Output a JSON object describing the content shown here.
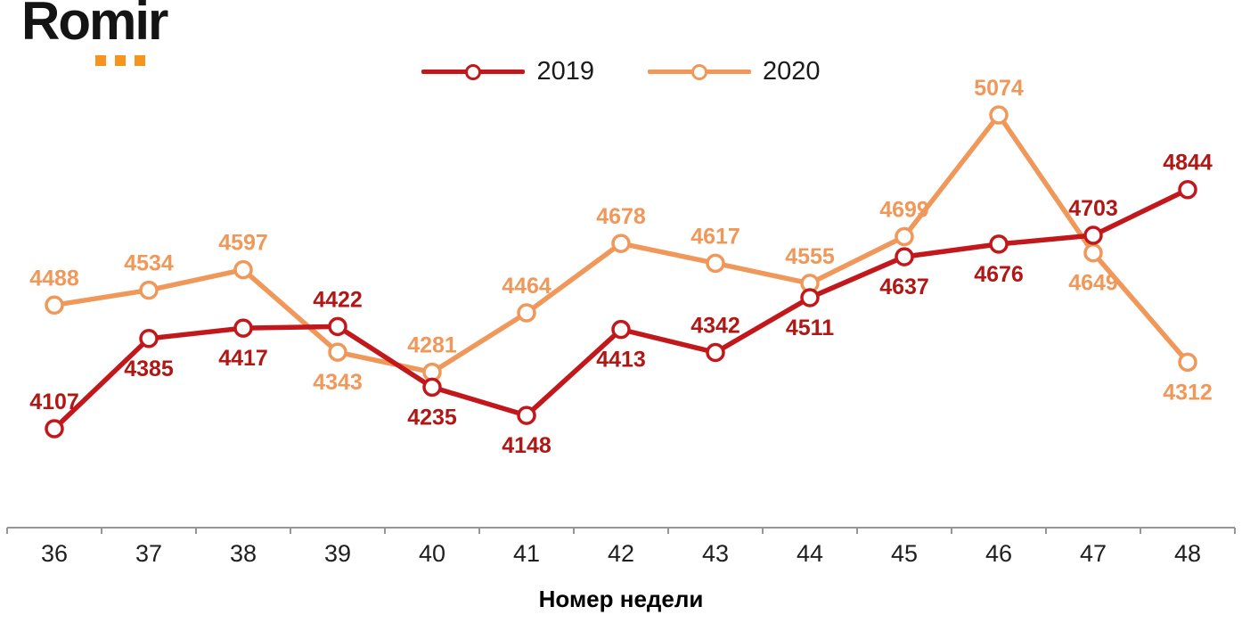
{
  "logo": {
    "text": "Romir",
    "text_color": "#141414",
    "dot_color": "#F7941E"
  },
  "chart_data": {
    "type": "line",
    "title": "",
    "categories": [
      "36",
      "37",
      "38",
      "39",
      "40",
      "41",
      "42",
      "43",
      "44",
      "45",
      "46",
      "47",
      "48"
    ],
    "xlabel": "Номер недели",
    "ylabel": "",
    "grid": false,
    "y_axis_visible": false,
    "legend_position": "top-center",
    "axis_color": "#969696",
    "tick_label_color": "#1f1f1f",
    "series": [
      {
        "name": "2019",
        "color": "#C2181C",
        "label_color": "#B01715",
        "values": [
          4107,
          4385,
          4417,
          4422,
          4235,
          4148,
          4413,
          4342,
          4511,
          4637,
          4676,
          4703,
          4844
        ],
        "label_positions": [
          "above",
          "below",
          "below",
          "above",
          "below",
          "below",
          "below",
          "above",
          "below",
          "below",
          "below",
          "above",
          "above"
        ]
      },
      {
        "name": "2020",
        "color": "#F0985A",
        "label_color": "#F0985A",
        "values": [
          4488,
          4534,
          4597,
          4343,
          4281,
          4464,
          4678,
          4617,
          4555,
          4699,
          5074,
          4649,
          4312
        ],
        "label_positions": [
          "above",
          "above",
          "above",
          "below",
          "above",
          "above",
          "above",
          "above",
          "above",
          "above",
          "above",
          "below",
          "below"
        ]
      }
    ]
  }
}
